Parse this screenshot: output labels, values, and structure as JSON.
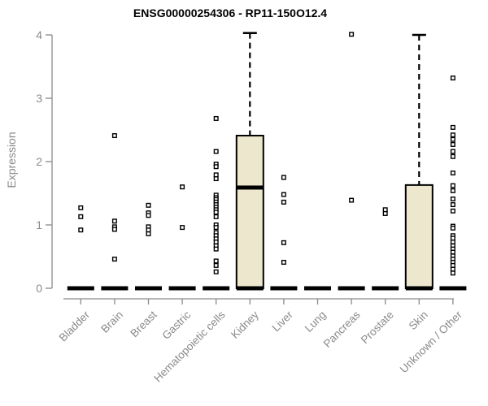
{
  "colors": {
    "box_fill": "#ede8cd",
    "box_border": "#000000",
    "median": "#000000",
    "outlier_stroke": "#000000",
    "outlier_fill": "#ffffff",
    "axis": "#8a8a8a",
    "text_gray": "#8a8a8a",
    "title_color": "#000000"
  },
  "chart_data": {
    "type": "boxplot",
    "title": "ENSG00000254306 - RP11-150O12.4",
    "xlabel": "",
    "ylabel": "Expression",
    "ylim": [
      0,
      4
    ],
    "ytick_labels": [
      "0",
      "1",
      "2",
      "3",
      "4"
    ],
    "yticks": [
      0,
      1,
      2,
      3,
      4
    ],
    "grid": false,
    "legend": "none",
    "categories": [
      "Bladder",
      "Brain",
      "Breast",
      "Gastric",
      "Hematopoietic cells",
      "Kidney",
      "Liver",
      "Lung",
      "Pancreas",
      "Prostate",
      "Skin",
      "Unknown / Other"
    ],
    "series": [
      {
        "name": "Bladder",
        "q1": 0,
        "median": 0,
        "q3": 0,
        "whisker_low": 0,
        "whisker_high": 0,
        "outliers": [
          1.27,
          1.13,
          0.92
        ]
      },
      {
        "name": "Brain",
        "q1": 0,
        "median": 0,
        "q3": 0,
        "whisker_low": 0,
        "whisker_high": 0,
        "outliers": [
          2.41,
          1.06,
          0.97,
          0.93,
          0.46
        ]
      },
      {
        "name": "Breast",
        "q1": 0,
        "median": 0,
        "q3": 0,
        "whisker_low": 0,
        "whisker_high": 0,
        "outliers": [
          1.31,
          1.19,
          1.15,
          0.97,
          0.92,
          0.86
        ]
      },
      {
        "name": "Gastric",
        "q1": 0,
        "median": 0,
        "q3": 0,
        "whisker_low": 0,
        "whisker_high": 0,
        "outliers": [
          1.6,
          0.96
        ]
      },
      {
        "name": "Hematopoietic cells",
        "q1": 0,
        "median": 0,
        "q3": 0,
        "whisker_low": 0,
        "whisker_high": 0,
        "outliers": [
          2.68,
          2.16,
          1.96,
          1.92,
          1.79,
          1.73,
          1.47,
          1.43,
          1.4,
          1.36,
          1.32,
          1.28,
          1.24,
          1.2,
          1.13,
          1.0,
          0.96,
          0.88,
          0.83,
          0.78,
          0.73,
          0.67,
          0.62,
          0.43,
          0.36,
          0.26
        ]
      },
      {
        "name": "Kidney",
        "q1": 0,
        "median": 1.59,
        "q3": 2.41,
        "whisker_low": 0,
        "whisker_high": 4.03,
        "outliers": []
      },
      {
        "name": "Liver",
        "q1": 0,
        "median": 0,
        "q3": 0,
        "whisker_low": 0,
        "whisker_high": 0,
        "outliers": [
          1.75,
          1.48,
          1.36,
          0.72,
          0.41
        ]
      },
      {
        "name": "Lung",
        "q1": 0,
        "median": 0,
        "q3": 0,
        "whisker_low": 0,
        "whisker_high": 0,
        "outliers": []
      },
      {
        "name": "Pancreas",
        "q1": 0,
        "median": 0,
        "q3": 0,
        "whisker_low": 0,
        "whisker_high": 0,
        "outliers": [
          4.01,
          1.39
        ]
      },
      {
        "name": "Prostate",
        "q1": 0,
        "median": 0,
        "q3": 0,
        "whisker_low": 0,
        "whisker_high": 0,
        "outliers": [
          1.24,
          1.18
        ]
      },
      {
        "name": "Skin",
        "q1": 0,
        "median": 0,
        "q3": 1.63,
        "whisker_low": 0,
        "whisker_high": 4.0,
        "outliers": []
      },
      {
        "name": "Unknown / Other",
        "q1": 0,
        "median": 0,
        "q3": 0,
        "whisker_low": 0,
        "whisker_high": 0,
        "outliers": [
          3.32,
          2.54,
          2.42,
          2.35,
          2.27,
          2.16,
          2.08,
          1.82,
          1.62,
          1.54,
          1.41,
          1.32,
          1.22,
          0.98,
          0.95,
          0.83,
          0.79,
          0.73,
          0.67,
          0.62,
          0.57,
          0.51,
          0.46,
          0.41,
          0.36,
          0.3,
          0.24
        ]
      }
    ]
  }
}
